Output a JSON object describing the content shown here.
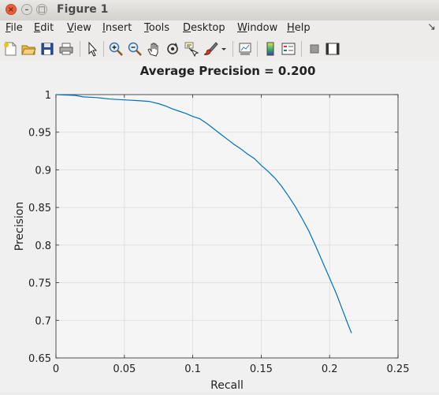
{
  "window": {
    "title": "Figure 1"
  },
  "menu": {
    "items": [
      {
        "id": "file",
        "first": "F",
        "rest": "ile"
      },
      {
        "id": "edit",
        "first": "E",
        "rest": "dit"
      },
      {
        "id": "view",
        "first": "V",
        "rest": "iew"
      },
      {
        "id": "insert",
        "first": "I",
        "rest": "nsert"
      },
      {
        "id": "tools",
        "first": "T",
        "rest": "ools"
      },
      {
        "id": "desktop",
        "first": "D",
        "rest": "esktop"
      },
      {
        "id": "window",
        "first": "W",
        "rest": "indow"
      },
      {
        "id": "help",
        "first": "H",
        "rest": "elp"
      }
    ],
    "dock_glyph": "↘"
  },
  "toolbar": {
    "icons": [
      "new-figure-icon",
      "open-file-icon",
      "save-icon",
      "print-icon",
      "edit-plot-arrow-icon",
      "zoom-in-icon",
      "zoom-out-icon",
      "pan-hand-icon",
      "rotate-3d-icon",
      "data-cursor-icon",
      "brush-icon",
      "chevron-down-icon",
      "link-plot-icon",
      "colorbar-icon",
      "legend-icon",
      "hide-plot-tools-icon",
      "show-plot-tools-icon"
    ]
  },
  "colors": {
    "line": "#0072bd",
    "axes_bg": "#f5f5f5",
    "grid": "#dcdcdc"
  },
  "chart_data": {
    "type": "line",
    "title": "Average Precision = 0.200",
    "xlabel": "Recall",
    "ylabel": "Precision",
    "xlim": [
      0,
      0.25
    ],
    "ylim": [
      0.65,
      1
    ],
    "xticks": [
      0,
      0.05,
      0.1,
      0.15,
      0.2,
      0.25
    ],
    "xtick_labels": [
      "0",
      "0.05",
      "0.1",
      "0.15",
      "0.2",
      "0.25"
    ],
    "yticks": [
      0.65,
      0.7,
      0.75,
      0.8,
      0.85,
      0.9,
      0.95,
      1
    ],
    "ytick_labels": [
      "0.65",
      "0.7",
      "0.75",
      "0.8",
      "0.85",
      "0.9",
      "0.95",
      "1"
    ],
    "grid": true,
    "series": [
      {
        "x": [
          0.0,
          0.014,
          0.02,
          0.03,
          0.04,
          0.05,
          0.06,
          0.068,
          0.075,
          0.08,
          0.085,
          0.09,
          0.095,
          0.1,
          0.105,
          0.11,
          0.115,
          0.12,
          0.125,
          0.13,
          0.135,
          0.14,
          0.145,
          0.15,
          0.155,
          0.16,
          0.165,
          0.17,
          0.175,
          0.18,
          0.185,
          0.19,
          0.195,
          0.2,
          0.205,
          0.21,
          0.214,
          0.216
        ],
        "y": [
          1.0,
          0.999,
          0.997,
          0.996,
          0.994,
          0.993,
          0.992,
          0.991,
          0.988,
          0.985,
          0.981,
          0.978,
          0.975,
          0.971,
          0.968,
          0.962,
          0.955,
          0.948,
          0.941,
          0.934,
          0.928,
          0.921,
          0.915,
          0.906,
          0.898,
          0.889,
          0.878,
          0.865,
          0.851,
          0.835,
          0.818,
          0.798,
          0.777,
          0.756,
          0.735,
          0.711,
          0.692,
          0.683
        ]
      }
    ]
  }
}
